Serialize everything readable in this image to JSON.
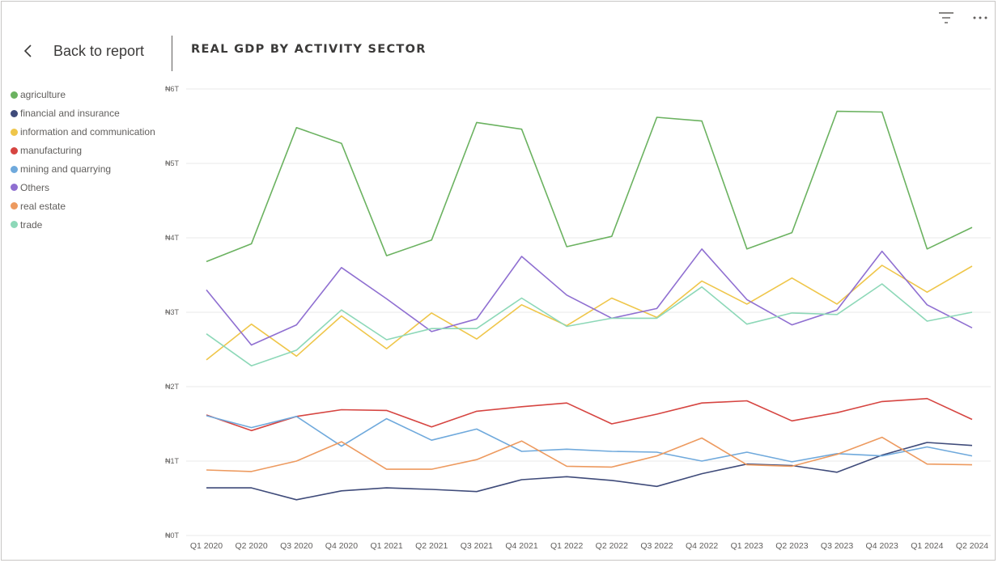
{
  "header": {
    "back_label": "Back to report",
    "back_icon": "chevron-left-icon",
    "title": "REAL GDP BY ACTIVITY SECTOR",
    "tools": [
      {
        "name": "filter-icon"
      },
      {
        "name": "more-options-icon"
      }
    ]
  },
  "colors": {
    "agriculture": "#6bb260",
    "financial and insurance": "#3f4b7a",
    "information and communication": "#efc64a",
    "manufacturing": "#d64541",
    "mining and quarrying": "#6fa9dc",
    "Others": "#8f6fd1",
    "real estate": "#ed9a5f",
    "trade": "#8dd8b8",
    "grid": "#eaeaea",
    "axis_text": "#605e5c"
  },
  "chart_data": {
    "type": "line",
    "title": "REAL GDP BY ACTIVITY SECTOR",
    "xlabel": "",
    "ylabel": "",
    "ylim": [
      0,
      6
    ],
    "y_unit": "trillion Naira",
    "y_ticks": [
      {
        "value": 0,
        "label": "₦0T"
      },
      {
        "value": 1,
        "label": "₦1T"
      },
      {
        "value": 2,
        "label": "₦2T"
      },
      {
        "value": 3,
        "label": "₦3T"
      },
      {
        "value": 4,
        "label": "₦4T"
      },
      {
        "value": 5,
        "label": "₦5T"
      },
      {
        "value": 6,
        "label": "₦6T"
      }
    ],
    "grid": true,
    "legend_position": "left",
    "categories": [
      "Q1 2020",
      "Q2 2020",
      "Q3 2020",
      "Q4 2020",
      "Q1 2021",
      "Q2 2021",
      "Q3 2021",
      "Q4 2021",
      "Q1 2022",
      "Q2 2022",
      "Q3 2022",
      "Q4 2022",
      "Q1 2023",
      "Q2 2023",
      "Q3 2023",
      "Q4 2023",
      "Q1 2024",
      "Q2 2024"
    ],
    "series": [
      {
        "name": "agriculture",
        "values": [
          3.68,
          3.92,
          5.48,
          5.27,
          3.76,
          3.97,
          5.55,
          5.46,
          3.88,
          4.02,
          5.62,
          5.57,
          3.85,
          4.07,
          5.7,
          5.69,
          3.85,
          4.14
        ]
      },
      {
        "name": "financial and insurance",
        "values": [
          0.64,
          0.64,
          0.48,
          0.6,
          0.64,
          0.62,
          0.59,
          0.75,
          0.79,
          0.74,
          0.66,
          0.83,
          0.96,
          0.94,
          0.85,
          1.08,
          1.25,
          1.21
        ]
      },
      {
        "name": "information and communication",
        "values": [
          2.36,
          2.84,
          2.41,
          2.95,
          2.51,
          2.99,
          2.64,
          3.1,
          2.82,
          3.19,
          2.93,
          3.42,
          3.11,
          3.46,
          3.11,
          3.63,
          3.27,
          3.62
        ]
      },
      {
        "name": "manufacturing",
        "values": [
          1.62,
          1.41,
          1.6,
          1.69,
          1.68,
          1.46,
          1.67,
          1.73,
          1.78,
          1.5,
          1.63,
          1.78,
          1.81,
          1.54,
          1.65,
          1.8,
          1.84,
          1.56
        ]
      },
      {
        "name": "mining and quarrying",
        "values": [
          1.61,
          1.45,
          1.6,
          1.2,
          1.57,
          1.28,
          1.43,
          1.13,
          1.16,
          1.13,
          1.12,
          1.0,
          1.12,
          0.99,
          1.1,
          1.07,
          1.19,
          1.07
        ]
      },
      {
        "name": "Others",
        "values": [
          3.3,
          2.56,
          2.83,
          3.6,
          3.18,
          2.74,
          2.91,
          3.75,
          3.23,
          2.92,
          3.05,
          3.85,
          3.17,
          2.83,
          3.03,
          3.82,
          3.1,
          2.79
        ]
      },
      {
        "name": "real estate",
        "values": [
          0.88,
          0.86,
          1.0,
          1.26,
          0.89,
          0.89,
          1.02,
          1.27,
          0.93,
          0.92,
          1.07,
          1.31,
          0.95,
          0.93,
          1.09,
          1.32,
          0.96,
          0.95
        ]
      },
      {
        "name": "trade",
        "values": [
          2.71,
          2.28,
          2.49,
          3.03,
          2.63,
          2.78,
          2.78,
          3.19,
          2.81,
          2.92,
          2.92,
          3.34,
          2.84,
          2.99,
          2.97,
          3.38,
          2.88,
          3.0
        ]
      }
    ]
  }
}
